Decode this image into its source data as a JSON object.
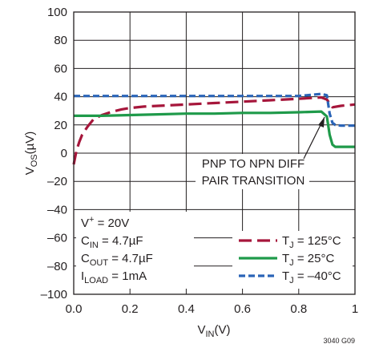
{
  "chart_data": {
    "type": "line",
    "xlabel_main": "V",
    "xlabel_sub": "IN",
    "xlabel_unit": "(V)",
    "ylabel_main": "V",
    "ylabel_sub": "OS",
    "ylabel_unit": "(µV)",
    "xlim": [
      0,
      1
    ],
    "ylim": [
      -100,
      100
    ],
    "grid": true,
    "x_ticks": [
      0,
      0.2,
      0.4,
      0.6,
      0.8,
      1
    ],
    "x_tick_labels": [
      "0.0",
      "0.2",
      "0.4",
      "0.6",
      "0.8",
      "1"
    ],
    "y_ticks": [
      100,
      80,
      60,
      40,
      20,
      0,
      -20,
      -40,
      -60,
      -80,
      -100
    ],
    "y_tick_labels": [
      "100",
      "80",
      "60",
      "40",
      "20",
      "0",
      "–20",
      "–40",
      "–60",
      "–80",
      "–100"
    ],
    "series": [
      {
        "name": "TJ = 125°C",
        "legend_main": "T",
        "legend_sub": "J",
        "legend_rest": " = 125°C",
        "color": "#a6163b",
        "dash": "long",
        "x": [
          0.0,
          0.01,
          0.02,
          0.03,
          0.05,
          0.07,
          0.1,
          0.13,
          0.17,
          0.2,
          0.25,
          0.3,
          0.4,
          0.5,
          0.6,
          0.7,
          0.8,
          0.88,
          0.9,
          0.92,
          0.95,
          1.0
        ],
        "y": [
          -8,
          2,
          8,
          13,
          19,
          24,
          27,
          29,
          31,
          32,
          33,
          33.5,
          34.5,
          35.5,
          36.5,
          37.5,
          38.5,
          39.5,
          38,
          32.5,
          33.5,
          34.5
        ]
      },
      {
        "name": "TJ = 25°C",
        "legend_main": "T",
        "legend_sub": "J",
        "legend_rest": " = 25°C",
        "color": "#1f9a4a",
        "dash": "solid",
        "x": [
          0.0,
          0.05,
          0.1,
          0.2,
          0.3,
          0.4,
          0.5,
          0.6,
          0.7,
          0.8,
          0.88,
          0.9,
          0.91,
          0.92,
          0.93,
          0.95,
          1.0
        ],
        "y": [
          26.5,
          26.5,
          26.5,
          27,
          27.5,
          28,
          28,
          28.5,
          28.5,
          29,
          29.5,
          26,
          13,
          6,
          4.5,
          4.5,
          4.5
        ]
      },
      {
        "name": "TJ = –40°C",
        "legend_main": "T",
        "legend_sub": "J",
        "legend_rest": " = –40°C",
        "color": "#2a64b7",
        "dash": "short",
        "x": [
          0.0,
          0.05,
          0.1,
          0.2,
          0.3,
          0.4,
          0.5,
          0.6,
          0.7,
          0.8,
          0.88,
          0.9,
          0.91,
          0.92,
          0.93,
          0.95,
          1.0
        ],
        "y": [
          40.5,
          40.5,
          40.5,
          40.5,
          40.5,
          40.5,
          40.5,
          40.5,
          40.5,
          40.5,
          42,
          41,
          28,
          21.5,
          20,
          19.5,
          19.5
        ]
      }
    ],
    "conditions": [
      {
        "main": "V",
        "sup": "+",
        "sub": "",
        "rest": " = 20V"
      },
      {
        "main": "C",
        "sup": "",
        "sub": "IN",
        "rest": " = 4.7µF"
      },
      {
        "main": "C",
        "sup": "",
        "sub": "OUT",
        "rest": " = 4.7µF"
      },
      {
        "main": "I",
        "sup": "",
        "sub": "LOAD",
        "rest": " = 1mA"
      }
    ],
    "annotation_lines": [
      "PNP TO NPN DIFF",
      "PAIR TRANSITION"
    ],
    "footnote": "3040 G09"
  }
}
